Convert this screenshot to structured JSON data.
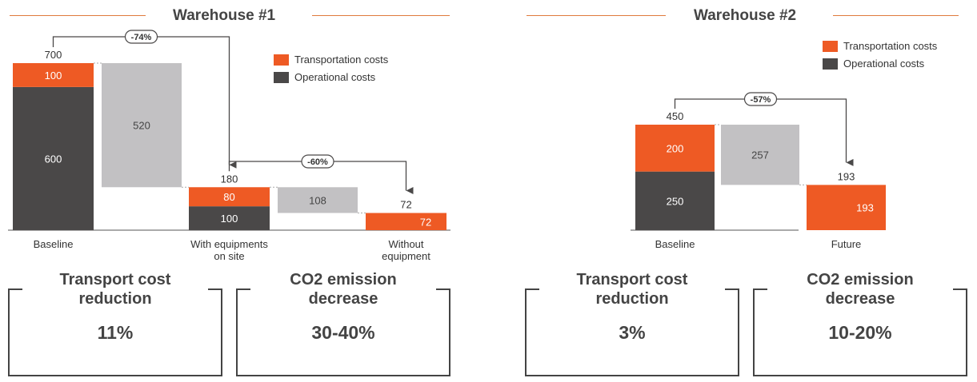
{
  "colors": {
    "transport": "#ee5a24",
    "operational": "#4a4848",
    "delta": "#c2c1c3",
    "rule": "#e07b3c",
    "text": "#333333"
  },
  "legend": {
    "transport": "Transportation costs",
    "operational": "Operational costs"
  },
  "warehouse1": {
    "title": "Warehouse #1",
    "kpis": [
      {
        "title": "Transport cost\nreduction",
        "value": "11%"
      },
      {
        "title": "CO2 emission\ndecrease",
        "value": "30-40%"
      }
    ]
  },
  "warehouse2": {
    "title": "Warehouse #2",
    "kpis": [
      {
        "title": "Transport cost\nreduction",
        "value": "3%"
      },
      {
        "title": "CO2 emission\ndecrease",
        "value": "10-20%"
      }
    ]
  },
  "chart_data": [
    {
      "type": "bar",
      "subtype": "waterfall",
      "title": "Warehouse #1",
      "categories": [
        "Baseline",
        "With equipments on site",
        "Without equipment"
      ],
      "series": [
        {
          "name": "Operational costs",
          "values": [
            600,
            100,
            0
          ]
        },
        {
          "name": "Transportation costs",
          "values": [
            100,
            80,
            72
          ]
        }
      ],
      "totals": [
        700,
        180,
        72
      ],
      "decreases": [
        520,
        108
      ],
      "changes": [
        "-74%",
        "-60%"
      ],
      "ylim": [
        0,
        700
      ],
      "legend_position": "top-right"
    },
    {
      "type": "bar",
      "subtype": "waterfall",
      "title": "Warehouse #2",
      "categories": [
        "Baseline",
        "Future"
      ],
      "series": [
        {
          "name": "Operational costs",
          "values": [
            250,
            0
          ]
        },
        {
          "name": "Transportation costs",
          "values": [
            200,
            193
          ]
        }
      ],
      "totals": [
        450,
        193
      ],
      "decreases": [
        257
      ],
      "changes": [
        "-57%"
      ],
      "ylim": [
        0,
        450
      ],
      "legend_position": "top-right"
    }
  ]
}
